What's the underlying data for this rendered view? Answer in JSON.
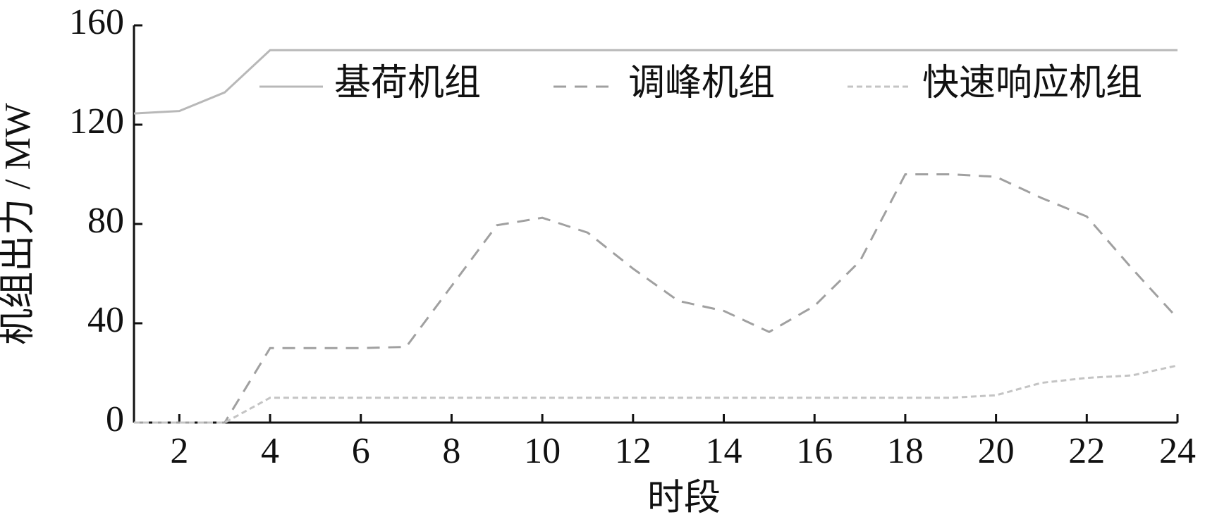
{
  "chart_data": {
    "type": "line",
    "x_label": "时段",
    "y_label": "机组出力 / MW",
    "x": [
      1,
      2,
      3,
      4,
      5,
      6,
      7,
      8,
      9,
      10,
      11,
      12,
      13,
      14,
      15,
      16,
      17,
      18,
      19,
      20,
      21,
      22,
      23,
      24
    ],
    "xlim": [
      1,
      24
    ],
    "xticks": [
      2,
      4,
      6,
      8,
      10,
      12,
      14,
      16,
      18,
      20,
      22,
      24
    ],
    "ylim": [
      0,
      160
    ],
    "yticks": [
      0,
      40,
      80,
      120,
      160
    ],
    "legend": "top",
    "series": [
      {
        "name": "基荷机组",
        "color": "#b8b8b8",
        "dash": "none",
        "values": [
          124.5,
          125.5,
          133,
          150,
          150,
          150,
          150,
          150,
          150,
          150,
          150,
          150,
          150,
          150,
          150,
          150,
          150,
          150,
          150,
          150,
          150,
          150,
          150,
          150
        ]
      },
      {
        "name": "调峰机组",
        "color": "#a0a0a0",
        "dash": "18 12",
        "values": [
          0,
          0,
          0,
          30,
          30,
          30,
          30.5,
          55,
          79.5,
          82.5,
          76.5,
          62,
          49,
          45,
          36.5,
          47,
          65,
          100,
          100,
          99,
          90.5,
          83,
          62,
          42
        ]
      },
      {
        "name": "快速响应机组",
        "color": "#c4c4c4",
        "dash": "8 5",
        "values": [
          0,
          0,
          0,
          10,
          10,
          10,
          10,
          10,
          10,
          10,
          10,
          10,
          10,
          10,
          10,
          10,
          10,
          10,
          10,
          11,
          16,
          18,
          19,
          23
        ]
      }
    ]
  }
}
